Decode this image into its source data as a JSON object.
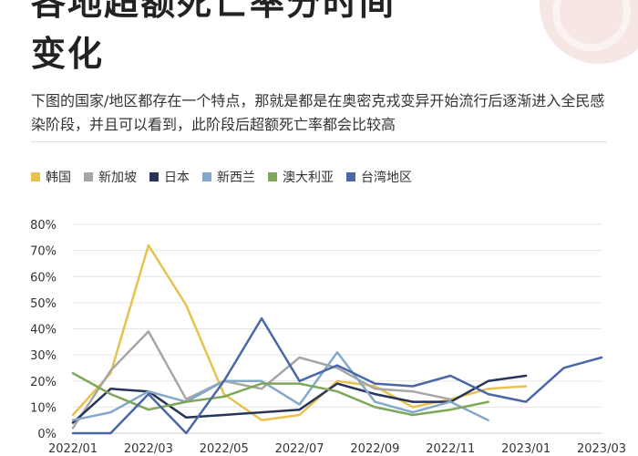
{
  "title": {
    "line1": "各地超额死亡率分时间",
    "line2": "变化"
  },
  "subtitle": "下图的国家/地区都存在一个特点，那就是都是在奥密克戎变异开始流行后逐渐进入全民感染阶段，并且可以看到，此阶段后超额死亡率都会比较高",
  "colors": {
    "title": "#222222",
    "text": "#333333",
    "divider": "#e2e2e2",
    "logo": "#f6e7e4"
  },
  "chart_data": {
    "type": "line",
    "title": "",
    "xlabel": "",
    "ylabel": "",
    "x": [
      "2022/01",
      "2022/02",
      "2022/03",
      "2022/04",
      "2022/05",
      "2022/06",
      "2022/07",
      "2022/08",
      "2022/09",
      "2022/10",
      "2022/11",
      "2022/12",
      "2023/01",
      "2023/02",
      "2023/03"
    ],
    "x_tick_labels": [
      "2022/01",
      "2022/03",
      "2022/05",
      "2022/07",
      "2022/09",
      "2022/11",
      "2023/01",
      "2023/03"
    ],
    "ylim": [
      0,
      80
    ],
    "y_ticks": [
      "0%",
      "10%",
      "20%",
      "30%",
      "40%",
      "50%",
      "60%",
      "70%",
      "80%"
    ],
    "grid": true,
    "legend_position": "top",
    "series": [
      {
        "name": "韩国",
        "color": "#e8c24f",
        "values": [
          7,
          23,
          72,
          49,
          15,
          5,
          7,
          20,
          18,
          10,
          13,
          17,
          18,
          null,
          null
        ]
      },
      {
        "name": "新加坡",
        "color": "#a6a6a6",
        "values": [
          2,
          24,
          39,
          13,
          20,
          17,
          29,
          25,
          17,
          16,
          13,
          null,
          null,
          null,
          null
        ]
      },
      {
        "name": "日本",
        "color": "#28355a",
        "values": [
          4,
          17,
          16,
          6,
          7,
          8,
          9,
          19,
          15,
          12,
          12,
          20,
          22,
          null,
          null
        ]
      },
      {
        "name": "新西兰",
        "color": "#84a8cc",
        "values": [
          5,
          8,
          16,
          12,
          20,
          20,
          11,
          31,
          12,
          8,
          12,
          5,
          null,
          null,
          null
        ]
      },
      {
        "name": "澳大利亚",
        "color": "#7fa75a",
        "values": [
          23,
          15,
          9,
          12,
          14,
          19,
          19,
          16,
          10,
          7,
          9,
          12,
          null,
          null,
          null
        ]
      },
      {
        "name": "台湾地区",
        "color": "#4a68a8",
        "values": [
          0,
          0,
          15,
          0,
          20,
          44,
          20,
          26,
          19,
          18,
          22,
          15,
          12,
          25,
          29
        ]
      }
    ]
  }
}
